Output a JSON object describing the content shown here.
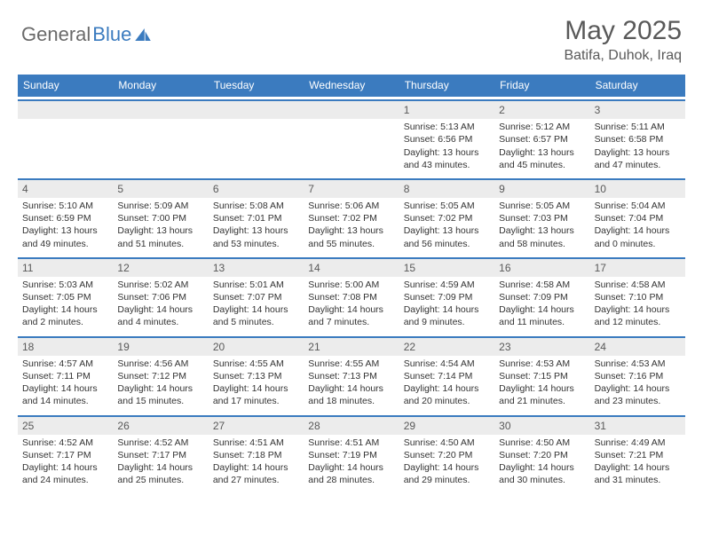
{
  "logo": {
    "general": "General",
    "blue": "Blue"
  },
  "title": "May 2025",
  "location": "Batifa, Duhok, Iraq",
  "weekdays": [
    "Sunday",
    "Monday",
    "Tuesday",
    "Wednesday",
    "Thursday",
    "Friday",
    "Saturday"
  ],
  "header_bg": "#3b7bbf",
  "header_text": "#ffffff",
  "daynum_bg": "#ececec",
  "rule_color": "#3b7bbf",
  "text_color": "#333333",
  "days": [
    {
      "n": "",
      "sr": "",
      "ss": "",
      "dl": ""
    },
    {
      "n": "",
      "sr": "",
      "ss": "",
      "dl": ""
    },
    {
      "n": "",
      "sr": "",
      "ss": "",
      "dl": ""
    },
    {
      "n": "",
      "sr": "",
      "ss": "",
      "dl": ""
    },
    {
      "n": "1",
      "sr": "Sunrise: 5:13 AM",
      "ss": "Sunset: 6:56 PM",
      "dl": "Daylight: 13 hours and 43 minutes."
    },
    {
      "n": "2",
      "sr": "Sunrise: 5:12 AM",
      "ss": "Sunset: 6:57 PM",
      "dl": "Daylight: 13 hours and 45 minutes."
    },
    {
      "n": "3",
      "sr": "Sunrise: 5:11 AM",
      "ss": "Sunset: 6:58 PM",
      "dl": "Daylight: 13 hours and 47 minutes."
    },
    {
      "n": "4",
      "sr": "Sunrise: 5:10 AM",
      "ss": "Sunset: 6:59 PM",
      "dl": "Daylight: 13 hours and 49 minutes."
    },
    {
      "n": "5",
      "sr": "Sunrise: 5:09 AM",
      "ss": "Sunset: 7:00 PM",
      "dl": "Daylight: 13 hours and 51 minutes."
    },
    {
      "n": "6",
      "sr": "Sunrise: 5:08 AM",
      "ss": "Sunset: 7:01 PM",
      "dl": "Daylight: 13 hours and 53 minutes."
    },
    {
      "n": "7",
      "sr": "Sunrise: 5:06 AM",
      "ss": "Sunset: 7:02 PM",
      "dl": "Daylight: 13 hours and 55 minutes."
    },
    {
      "n": "8",
      "sr": "Sunrise: 5:05 AM",
      "ss": "Sunset: 7:02 PM",
      "dl": "Daylight: 13 hours and 56 minutes."
    },
    {
      "n": "9",
      "sr": "Sunrise: 5:05 AM",
      "ss": "Sunset: 7:03 PM",
      "dl": "Daylight: 13 hours and 58 minutes."
    },
    {
      "n": "10",
      "sr": "Sunrise: 5:04 AM",
      "ss": "Sunset: 7:04 PM",
      "dl": "Daylight: 14 hours and 0 minutes."
    },
    {
      "n": "11",
      "sr": "Sunrise: 5:03 AM",
      "ss": "Sunset: 7:05 PM",
      "dl": "Daylight: 14 hours and 2 minutes."
    },
    {
      "n": "12",
      "sr": "Sunrise: 5:02 AM",
      "ss": "Sunset: 7:06 PM",
      "dl": "Daylight: 14 hours and 4 minutes."
    },
    {
      "n": "13",
      "sr": "Sunrise: 5:01 AM",
      "ss": "Sunset: 7:07 PM",
      "dl": "Daylight: 14 hours and 5 minutes."
    },
    {
      "n": "14",
      "sr": "Sunrise: 5:00 AM",
      "ss": "Sunset: 7:08 PM",
      "dl": "Daylight: 14 hours and 7 minutes."
    },
    {
      "n": "15",
      "sr": "Sunrise: 4:59 AM",
      "ss": "Sunset: 7:09 PM",
      "dl": "Daylight: 14 hours and 9 minutes."
    },
    {
      "n": "16",
      "sr": "Sunrise: 4:58 AM",
      "ss": "Sunset: 7:09 PM",
      "dl": "Daylight: 14 hours and 11 minutes."
    },
    {
      "n": "17",
      "sr": "Sunrise: 4:58 AM",
      "ss": "Sunset: 7:10 PM",
      "dl": "Daylight: 14 hours and 12 minutes."
    },
    {
      "n": "18",
      "sr": "Sunrise: 4:57 AM",
      "ss": "Sunset: 7:11 PM",
      "dl": "Daylight: 14 hours and 14 minutes."
    },
    {
      "n": "19",
      "sr": "Sunrise: 4:56 AM",
      "ss": "Sunset: 7:12 PM",
      "dl": "Daylight: 14 hours and 15 minutes."
    },
    {
      "n": "20",
      "sr": "Sunrise: 4:55 AM",
      "ss": "Sunset: 7:13 PM",
      "dl": "Daylight: 14 hours and 17 minutes."
    },
    {
      "n": "21",
      "sr": "Sunrise: 4:55 AM",
      "ss": "Sunset: 7:13 PM",
      "dl": "Daylight: 14 hours and 18 minutes."
    },
    {
      "n": "22",
      "sr": "Sunrise: 4:54 AM",
      "ss": "Sunset: 7:14 PM",
      "dl": "Daylight: 14 hours and 20 minutes."
    },
    {
      "n": "23",
      "sr": "Sunrise: 4:53 AM",
      "ss": "Sunset: 7:15 PM",
      "dl": "Daylight: 14 hours and 21 minutes."
    },
    {
      "n": "24",
      "sr": "Sunrise: 4:53 AM",
      "ss": "Sunset: 7:16 PM",
      "dl": "Daylight: 14 hours and 23 minutes."
    },
    {
      "n": "25",
      "sr": "Sunrise: 4:52 AM",
      "ss": "Sunset: 7:17 PM",
      "dl": "Daylight: 14 hours and 24 minutes."
    },
    {
      "n": "26",
      "sr": "Sunrise: 4:52 AM",
      "ss": "Sunset: 7:17 PM",
      "dl": "Daylight: 14 hours and 25 minutes."
    },
    {
      "n": "27",
      "sr": "Sunrise: 4:51 AM",
      "ss": "Sunset: 7:18 PM",
      "dl": "Daylight: 14 hours and 27 minutes."
    },
    {
      "n": "28",
      "sr": "Sunrise: 4:51 AM",
      "ss": "Sunset: 7:19 PM",
      "dl": "Daylight: 14 hours and 28 minutes."
    },
    {
      "n": "29",
      "sr": "Sunrise: 4:50 AM",
      "ss": "Sunset: 7:20 PM",
      "dl": "Daylight: 14 hours and 29 minutes."
    },
    {
      "n": "30",
      "sr": "Sunrise: 4:50 AM",
      "ss": "Sunset: 7:20 PM",
      "dl": "Daylight: 14 hours and 30 minutes."
    },
    {
      "n": "31",
      "sr": "Sunrise: 4:49 AM",
      "ss": "Sunset: 7:21 PM",
      "dl": "Daylight: 14 hours and 31 minutes."
    }
  ]
}
